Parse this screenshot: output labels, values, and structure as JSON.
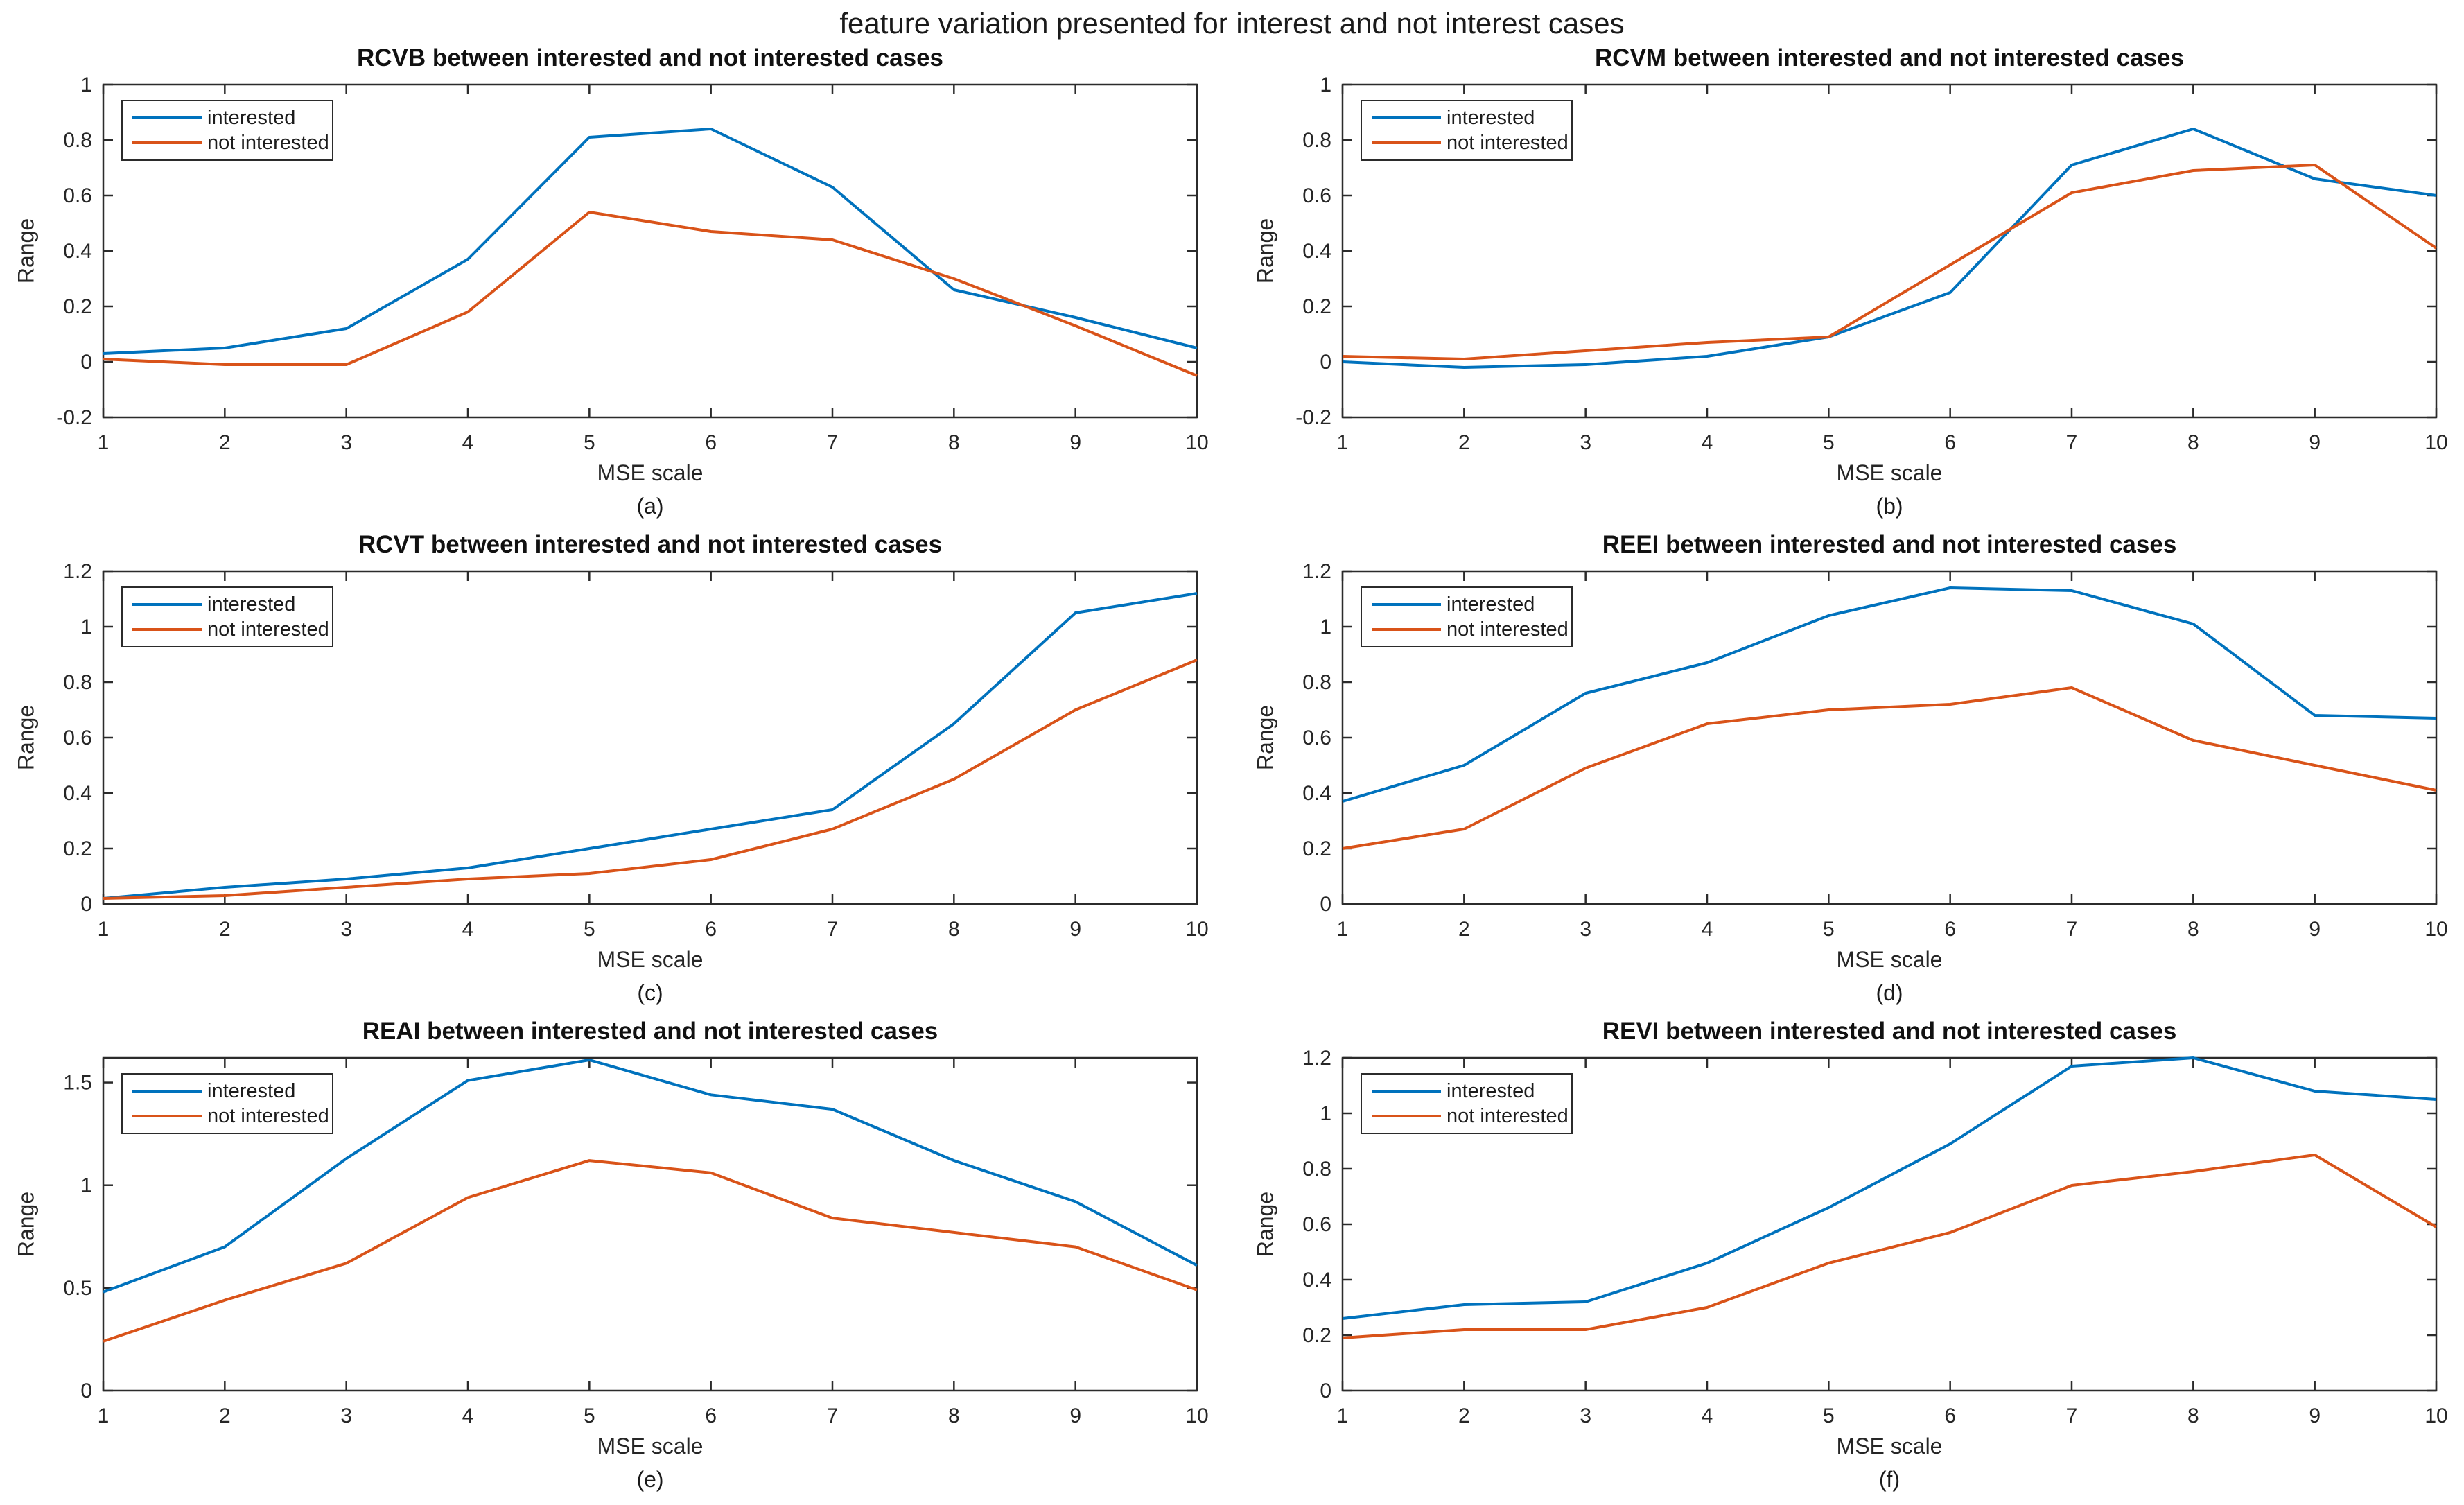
{
  "figure": {
    "title": "feature variation presented for interest and not interest cases"
  },
  "style": {
    "axis_color": "#2b2b2b",
    "series_blue": "#0072BD",
    "series_orange": "#D95319",
    "background": "#ffffff"
  },
  "chart_data": [
    {
      "type": "line",
      "panel": "(a)",
      "title": "RCVB between interested and not interested cases",
      "xlabel": "MSE scale",
      "ylabel": "Range",
      "x": [
        1,
        2,
        3,
        4,
        5,
        6,
        7,
        8,
        9,
        10
      ],
      "xlim": [
        1,
        10
      ],
      "ylim": [
        -0.2,
        1
      ],
      "yticks": [
        -0.2,
        0,
        0.2,
        0.4,
        0.6,
        0.8,
        1
      ],
      "grid": false,
      "legend_position": "top-left",
      "series": [
        {
          "name": "interested",
          "color": "#0072BD",
          "values": [
            0.03,
            0.05,
            0.12,
            0.37,
            0.81,
            0.84,
            0.63,
            0.26,
            0.16,
            0.05
          ]
        },
        {
          "name": "not interested",
          "color": "#D95319",
          "values": [
            0.01,
            -0.01,
            -0.01,
            0.18,
            0.54,
            0.47,
            0.44,
            0.3,
            0.13,
            -0.05
          ]
        }
      ]
    },
    {
      "type": "line",
      "panel": "(b)",
      "title": "RCVM between interested and not interested cases",
      "xlabel": "MSE scale",
      "ylabel": "Range",
      "x": [
        1,
        2,
        3,
        4,
        5,
        6,
        7,
        8,
        9,
        10
      ],
      "xlim": [
        1,
        10
      ],
      "ylim": [
        -0.2,
        1
      ],
      "yticks": [
        -0.2,
        0,
        0.2,
        0.4,
        0.6,
        0.8,
        1
      ],
      "grid": false,
      "legend_position": "top-left",
      "series": [
        {
          "name": "interested",
          "color": "#0072BD",
          "values": [
            0.0,
            -0.02,
            -0.01,
            0.02,
            0.09,
            0.25,
            0.71,
            0.84,
            0.66,
            0.6
          ]
        },
        {
          "name": "not interested",
          "color": "#D95319",
          "values": [
            0.02,
            0.01,
            0.04,
            0.07,
            0.09,
            0.35,
            0.61,
            0.69,
            0.71,
            0.41
          ]
        }
      ]
    },
    {
      "type": "line",
      "panel": "(c)",
      "title": "RCVT between interested and not interested cases",
      "xlabel": "MSE scale",
      "ylabel": "Range",
      "x": [
        1,
        2,
        3,
        4,
        5,
        6,
        7,
        8,
        9,
        10
      ],
      "xlim": [
        1,
        10
      ],
      "ylim": [
        0,
        1.2
      ],
      "yticks": [
        0,
        0.2,
        0.4,
        0.6,
        0.8,
        1,
        1.2
      ],
      "grid": false,
      "legend_position": "top-left",
      "series": [
        {
          "name": "interested",
          "color": "#0072BD",
          "values": [
            0.02,
            0.06,
            0.09,
            0.13,
            0.2,
            0.27,
            0.34,
            0.65,
            1.05,
            1.12
          ]
        },
        {
          "name": "not interested",
          "color": "#D95319",
          "values": [
            0.02,
            0.03,
            0.06,
            0.09,
            0.11,
            0.16,
            0.27,
            0.45,
            0.7,
            0.88
          ]
        }
      ]
    },
    {
      "type": "line",
      "panel": "(d)",
      "title": "REEI between interested and not interested cases",
      "xlabel": "MSE scale",
      "ylabel": "Range",
      "x": [
        1,
        2,
        3,
        4,
        5,
        6,
        7,
        8,
        9,
        10
      ],
      "xlim": [
        1,
        10
      ],
      "ylim": [
        0,
        1.2
      ],
      "yticks": [
        0,
        0.2,
        0.4,
        0.6,
        0.8,
        1,
        1.2
      ],
      "grid": false,
      "legend_position": "top-left",
      "series": [
        {
          "name": "interested",
          "color": "#0072BD",
          "values": [
            0.37,
            0.5,
            0.76,
            0.87,
            1.04,
            1.14,
            1.13,
            1.01,
            0.68,
            0.67
          ]
        },
        {
          "name": "not interested",
          "color": "#D95319",
          "values": [
            0.2,
            0.27,
            0.49,
            0.65,
            0.7,
            0.72,
            0.78,
            0.59,
            0.5,
            0.41
          ]
        }
      ]
    },
    {
      "type": "line",
      "panel": "(e)",
      "title": "REAI between interested and not interested cases",
      "xlabel": "MSE scale",
      "ylabel": "Range",
      "x": [
        1,
        2,
        3,
        4,
        5,
        6,
        7,
        8,
        9,
        10
      ],
      "xlim": [
        1,
        10
      ],
      "ylim": [
        0,
        1.62
      ],
      "yticks": [
        0,
        0.5,
        1,
        1.5
      ],
      "grid": false,
      "legend_position": "top-left",
      "series": [
        {
          "name": "interested",
          "color": "#0072BD",
          "values": [
            0.48,
            0.7,
            1.13,
            1.51,
            1.61,
            1.44,
            1.37,
            1.12,
            0.92,
            0.61
          ]
        },
        {
          "name": "not interested",
          "color": "#D95319",
          "values": [
            0.24,
            0.44,
            0.62,
            0.94,
            1.12,
            1.06,
            0.84,
            0.77,
            0.7,
            0.49
          ]
        }
      ]
    },
    {
      "type": "line",
      "panel": "(f)",
      "title": "REVI between interested and not interested cases",
      "xlabel": "MSE scale",
      "ylabel": "Range",
      "x": [
        1,
        2,
        3,
        4,
        5,
        6,
        7,
        8,
        9,
        10
      ],
      "xlim": [
        1,
        10
      ],
      "ylim": [
        0,
        1.2
      ],
      "yticks": [
        0,
        0.2,
        0.4,
        0.6,
        0.8,
        1,
        1.2
      ],
      "grid": false,
      "legend_position": "top-left",
      "series": [
        {
          "name": "interested",
          "color": "#0072BD",
          "values": [
            0.26,
            0.31,
            0.32,
            0.46,
            0.66,
            0.89,
            1.17,
            1.2,
            1.08,
            1.05
          ]
        },
        {
          "name": "not interested",
          "color": "#D95319",
          "values": [
            0.19,
            0.22,
            0.22,
            0.3,
            0.46,
            0.57,
            0.74,
            0.79,
            0.85,
            0.59
          ]
        }
      ]
    }
  ]
}
